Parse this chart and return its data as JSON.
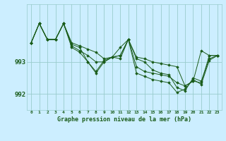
{
  "bg_color": "#cceeff",
  "grid_color": "#99cccc",
  "line_color": "#1a5c1a",
  "ylim": [
    991.5,
    994.8
  ],
  "yticks": [
    992,
    993
  ],
  "xlim": [
    -0.5,
    23.5
  ],
  "series": [
    [
      993.6,
      994.2,
      993.7,
      993.7,
      994.2,
      993.6,
      993.5,
      993.4,
      993.3,
      993.1,
      993.15,
      993.2,
      993.7,
      993.15,
      993.1,
      993.0,
      992.95,
      992.9,
      992.85,
      992.25,
      992.4,
      992.35,
      993.2,
      993.2
    ],
    [
      993.6,
      994.2,
      993.7,
      993.7,
      994.2,
      993.55,
      993.45,
      993.0,
      992.7,
      993.05,
      993.15,
      993.45,
      993.7,
      992.85,
      992.7,
      992.65,
      992.6,
      992.55,
      992.35,
      992.25,
      992.4,
      993.35,
      993.2,
      993.2
    ],
    [
      993.6,
      994.2,
      993.7,
      993.7,
      994.2,
      993.5,
      993.35,
      993.2,
      993.0,
      993.0,
      993.15,
      993.2,
      993.7,
      993.1,
      993.0,
      992.75,
      992.65,
      992.6,
      992.2,
      992.1,
      992.5,
      992.4,
      993.1,
      993.2
    ],
    [
      993.6,
      994.2,
      993.7,
      993.7,
      994.2,
      993.45,
      993.3,
      993.0,
      992.65,
      993.0,
      993.15,
      993.1,
      993.7,
      992.65,
      992.55,
      992.45,
      992.4,
      992.35,
      992.05,
      992.15,
      992.45,
      992.3,
      993.05,
      993.2
    ]
  ],
  "xtick_labels": [
    "0",
    "1",
    "2",
    "3",
    "4",
    "5",
    "6",
    "7",
    "8",
    "9",
    "10",
    "11",
    "12",
    "13",
    "14",
    "15",
    "16",
    "17",
    "18",
    "19",
    "20",
    "21",
    "22",
    "23"
  ],
  "xlabel": "Graphe pression niveau de la mer (hPa)",
  "font_color": "#1a5c1a"
}
